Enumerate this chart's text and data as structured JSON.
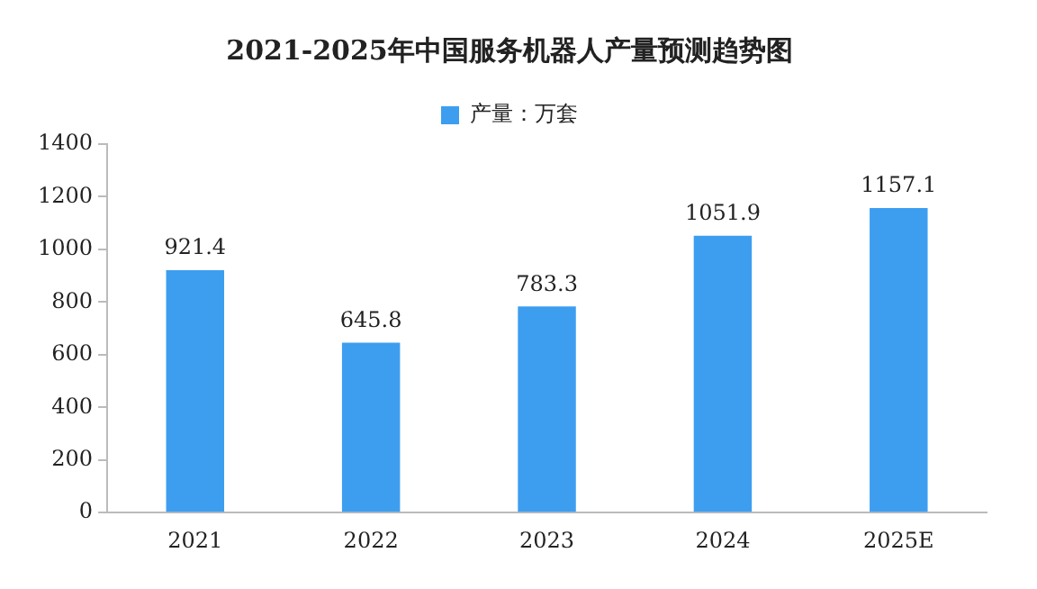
{
  "chart_data": {
    "type": "bar",
    "title": "2021-2025年中国服务机器人产量预测趋势图",
    "categories": [
      "2021",
      "2022",
      "2023",
      "2024",
      "2025E"
    ],
    "series": [
      {
        "name": "产量：万套",
        "color": "#3d9ef0",
        "values": [
          921.4,
          645.8,
          783.3,
          1051.9,
          1157.1
        ]
      }
    ],
    "ylim": [
      0,
      1400
    ],
    "yticks": [
      0,
      200,
      400,
      600,
      800,
      1000,
      1200,
      1400
    ],
    "grid": false,
    "legend": "top",
    "data_labels": true
  }
}
